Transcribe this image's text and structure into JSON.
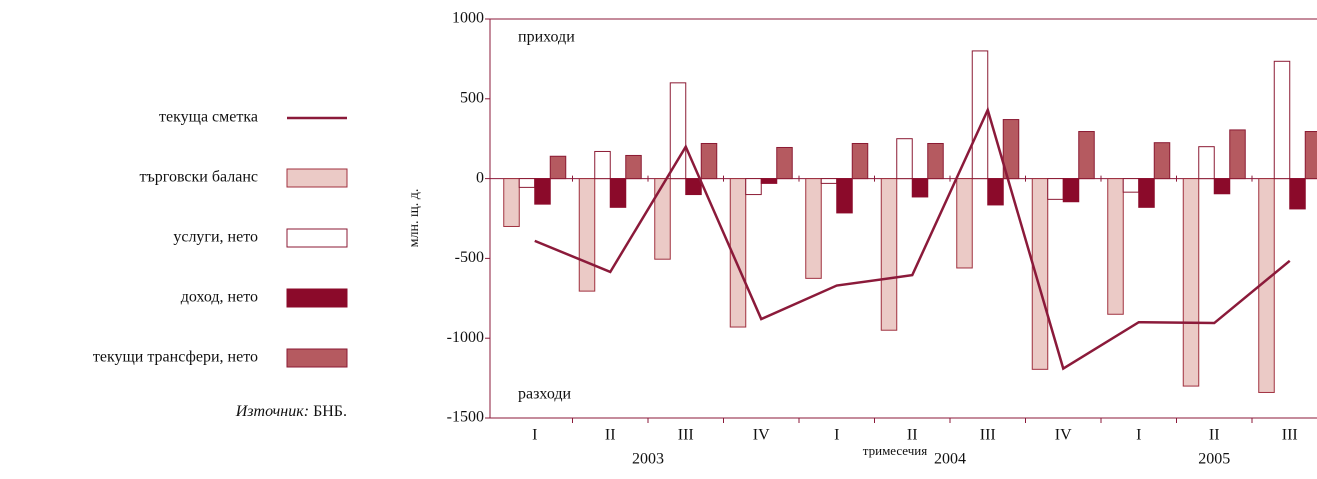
{
  "chart_data": {
    "type": "bar",
    "y_label": "млн. щ. д.",
    "x_label": "тримесечия",
    "annotations": [
      "приходи",
      "разходи"
    ],
    "source_label": "Източник:",
    "source": "БНБ.",
    "categories": [
      "I",
      "II",
      "III",
      "IV",
      "I",
      "II",
      "III",
      "IV",
      "I",
      "II",
      "III"
    ],
    "years": [
      "2003",
      "2004",
      "2005"
    ],
    "ylim": [
      -1500,
      1000
    ],
    "yticks": [
      1000,
      500,
      0,
      -500,
      -1000,
      -1500
    ],
    "series": [
      {
        "name": "текуща сметка",
        "type": "line",
        "color": "#8b1a3a",
        "values": [
          -390,
          -585,
          200,
          -880,
          -670,
          -605,
          430,
          -1190,
          -900,
          -905,
          -515
        ]
      },
      {
        "name": "търговски баланс",
        "type": "bar",
        "color": "#ebcac6",
        "edge": "#a0303f",
        "values": [
          -300,
          -705,
          -505,
          -930,
          -625,
          -950,
          -560,
          -1195,
          -850,
          -1300,
          -1340
        ]
      },
      {
        "name": "услуги, нето",
        "type": "bar",
        "color": "#ffffff",
        "edge": "#8b1a33",
        "values": [
          -55,
          170,
          600,
          -100,
          -30,
          250,
          800,
          -130,
          -85,
          200,
          735
        ]
      },
      {
        "name": "доход, нето",
        "type": "bar",
        "color": "#8b0a2a",
        "edge": "#8b0a2a",
        "values": [
          -160,
          -180,
          -100,
          -30,
          -215,
          -115,
          -165,
          -145,
          -180,
          -95,
          -190
        ]
      },
      {
        "name": "текущи трансфери, нето",
        "type": "bar",
        "color": "#b55a60",
        "edge": "#8b1a33",
        "values": [
          140,
          145,
          220,
          195,
          220,
          220,
          370,
          295,
          225,
          305,
          295
        ]
      }
    ]
  }
}
